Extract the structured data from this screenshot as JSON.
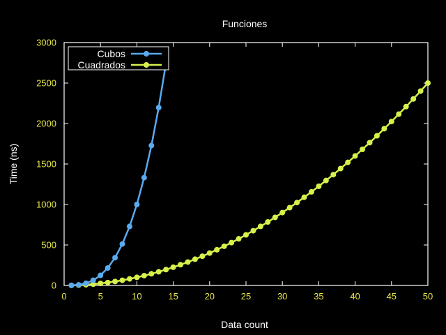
{
  "chart_data": {
    "type": "line",
    "title": "Funciones",
    "xlabel": "Data count",
    "ylabel": "Time (ns)",
    "xlim": [
      0,
      50
    ],
    "ylim": [
      0,
      3000
    ],
    "xticks": [
      0,
      5,
      10,
      15,
      20,
      25,
      30,
      35,
      40,
      45,
      50
    ],
    "yticks": [
      0,
      500,
      1000,
      1500,
      2000,
      2500,
      3000
    ],
    "grid": false,
    "legend_position": "top-left",
    "series": [
      {
        "name": "Cubos",
        "color": "#5aaaf0",
        "x": [
          1,
          2,
          3,
          4,
          5,
          6,
          7,
          8,
          9,
          10,
          11,
          12,
          13,
          14
        ],
        "y": [
          1,
          8,
          27,
          64,
          125,
          216,
          343,
          512,
          729,
          1000,
          1331,
          1728,
          2197,
          2744
        ]
      },
      {
        "name": "Cuadrados",
        "color": "#d8f04a",
        "x": [
          1,
          2,
          3,
          4,
          5,
          6,
          7,
          8,
          9,
          10,
          11,
          12,
          13,
          14,
          15,
          16,
          17,
          18,
          19,
          20,
          21,
          22,
          23,
          24,
          25,
          26,
          27,
          28,
          29,
          30,
          31,
          32,
          33,
          34,
          35,
          36,
          37,
          38,
          39,
          40,
          41,
          42,
          43,
          44,
          45,
          46,
          47,
          48,
          49,
          50
        ],
        "y": [
          1,
          4,
          9,
          16,
          25,
          36,
          49,
          64,
          81,
          100,
          121,
          144,
          169,
          196,
          225,
          256,
          289,
          324,
          361,
          400,
          441,
          484,
          529,
          576,
          625,
          676,
          729,
          784,
          841,
          900,
          961,
          1024,
          1089,
          1156,
          1225,
          1296,
          1369,
          1444,
          1521,
          1600,
          1681,
          1764,
          1849,
          1936,
          2025,
          2116,
          2209,
          2304,
          2401,
          2500
        ]
      }
    ]
  },
  "colors": {
    "background": "#000000",
    "axis": "#ffffff",
    "tick_label": "#e8e84a",
    "text": "#ffffff"
  }
}
